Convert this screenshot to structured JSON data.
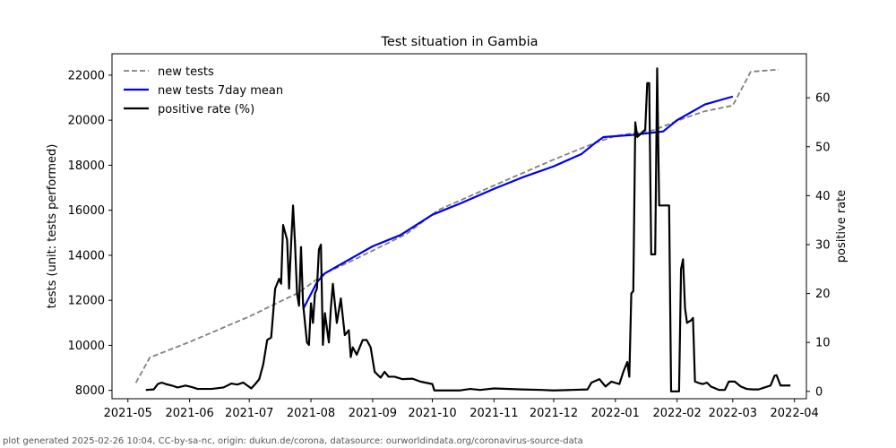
{
  "footer_text": "plot generated 2025-02-26 10:04, CC-by-sa-nc, origin: dukun.de/corona, datasource: ourworldindata.org/coronavirus-source-data",
  "chart_data": {
    "type": "line",
    "title": "Test situation in Gambia",
    "ylabel_left": "tests (unit: tests performed)",
    "ylabel_right": "positive rate",
    "x_ticks": [
      "2021-05",
      "2021-06",
      "2021-07",
      "2021-08",
      "2021-09",
      "2021-10",
      "2021-11",
      "2021-12",
      "2022-01",
      "2022-02",
      "2022-03",
      "2022-04"
    ],
    "x_range": [
      "2021-04-23",
      "2022-04-07"
    ],
    "y_left_ticks": [
      8000,
      10000,
      12000,
      14000,
      16000,
      18000,
      20000,
      22000
    ],
    "y_left_range": [
      7630,
      22950
    ],
    "y_right_ticks": [
      0,
      10,
      20,
      30,
      40,
      50,
      60
    ],
    "y_right_range": [
      -1.5,
      69
    ],
    "legend": {
      "placement": "top-left",
      "entries": [
        "new tests",
        "new tests 7day mean",
        "positive rate (%)"
      ]
    },
    "colors": {
      "new_tests": "#808080",
      "mean": "#0000ee",
      "positive": "#000000"
    },
    "series": [
      {
        "name": "new tests",
        "axis": "left",
        "style": "dashed",
        "points": [
          [
            "2021-05-05",
            8340
          ],
          [
            "2021-05-12",
            9460
          ],
          [
            "2021-06-01",
            10150
          ],
          [
            "2021-07-01",
            11280
          ],
          [
            "2021-07-26",
            12350
          ],
          [
            "2021-08-08",
            13200
          ],
          [
            "2021-08-25",
            13900
          ],
          [
            "2021-09-18",
            14950
          ],
          [
            "2021-10-04",
            16010
          ],
          [
            "2021-11-01",
            17100
          ],
          [
            "2021-12-01",
            18250
          ],
          [
            "2021-12-22",
            19000
          ],
          [
            "2022-01-01",
            19300
          ],
          [
            "2022-01-20",
            19550
          ],
          [
            "2022-02-05",
            20100
          ],
          [
            "2022-02-15",
            20400
          ],
          [
            "2022-03-01",
            20650
          ],
          [
            "2022-03-10",
            22150
          ],
          [
            "2022-03-24",
            22250
          ]
        ]
      },
      {
        "name": "new tests 7day mean",
        "axis": "left",
        "style": "solid",
        "points": [
          [
            "2021-07-28",
            11600
          ],
          [
            "2021-08-04",
            12800
          ],
          [
            "2021-08-08",
            13200
          ],
          [
            "2021-08-20",
            13800
          ],
          [
            "2021-09-01",
            14400
          ],
          [
            "2021-09-15",
            14900
          ],
          [
            "2021-10-01",
            15800
          ],
          [
            "2021-10-15",
            16300
          ],
          [
            "2021-11-01",
            16950
          ],
          [
            "2021-11-15",
            17450
          ],
          [
            "2021-12-01",
            17950
          ],
          [
            "2021-12-15",
            18500
          ],
          [
            "2021-12-22",
            19000
          ],
          [
            "2021-12-26",
            19250
          ],
          [
            "2022-01-10",
            19350
          ],
          [
            "2022-01-25",
            19500
          ],
          [
            "2022-02-01",
            20000
          ],
          [
            "2022-02-15",
            20700
          ],
          [
            "2022-03-01",
            21050
          ]
        ]
      },
      {
        "name": "positive rate (%)",
        "axis": "right",
        "style": "solid",
        "points": [
          [
            "2021-05-10",
            0.3
          ],
          [
            "2021-05-14",
            0.4
          ],
          [
            "2021-05-16",
            1.5
          ],
          [
            "2021-05-18",
            1.8
          ],
          [
            "2021-05-20",
            1.5
          ],
          [
            "2021-05-23",
            1.2
          ],
          [
            "2021-05-26",
            0.8
          ],
          [
            "2021-05-30",
            1.2
          ],
          [
            "2021-06-02",
            0.9
          ],
          [
            "2021-06-05",
            0.5
          ],
          [
            "2021-06-12",
            0.5
          ],
          [
            "2021-06-18",
            0.8
          ],
          [
            "2021-06-22",
            1.6
          ],
          [
            "2021-06-25",
            1.4
          ],
          [
            "2021-06-28",
            1.8
          ],
          [
            "2021-07-02",
            0.6
          ],
          [
            "2021-07-04",
            1.5
          ],
          [
            "2021-07-06",
            2.5
          ],
          [
            "2021-07-08",
            5.5
          ],
          [
            "2021-07-10",
            10.5
          ],
          [
            "2021-07-12",
            11
          ],
          [
            "2021-07-14",
            21
          ],
          [
            "2021-07-16",
            23
          ],
          [
            "2021-07-17",
            22
          ],
          [
            "2021-07-18",
            34
          ],
          [
            "2021-07-20",
            31
          ],
          [
            "2021-07-21",
            21
          ],
          [
            "2021-07-22",
            30
          ],
          [
            "2021-07-23",
            38
          ],
          [
            "2021-07-24",
            30
          ],
          [
            "2021-07-25",
            20
          ],
          [
            "2021-07-26",
            17.5
          ],
          [
            "2021-07-27",
            29.5
          ],
          [
            "2021-07-28",
            18
          ],
          [
            "2021-07-30",
            10
          ],
          [
            "2021-07-31",
            9.5
          ],
          [
            "2021-08-01",
            18
          ],
          [
            "2021-08-02",
            14
          ],
          [
            "2021-08-03",
            20
          ],
          [
            "2021-08-04",
            21
          ],
          [
            "2021-08-05",
            29
          ],
          [
            "2021-08-06",
            30
          ],
          [
            "2021-08-07",
            9.5
          ],
          [
            "2021-08-08",
            16
          ],
          [
            "2021-08-09",
            13
          ],
          [
            "2021-08-10",
            10
          ],
          [
            "2021-08-11",
            17
          ],
          [
            "2021-08-12",
            22
          ],
          [
            "2021-08-13",
            18
          ],
          [
            "2021-08-14",
            14
          ],
          [
            "2021-08-16",
            19
          ],
          [
            "2021-08-18",
            11.5
          ],
          [
            "2021-08-20",
            12.5
          ],
          [
            "2021-08-21",
            7
          ],
          [
            "2021-08-22",
            9
          ],
          [
            "2021-08-24",
            7.5
          ],
          [
            "2021-08-27",
            10.5
          ],
          [
            "2021-08-29",
            10.5
          ],
          [
            "2021-08-31",
            9
          ],
          [
            "2021-09-02",
            4
          ],
          [
            "2021-09-05",
            2.8
          ],
          [
            "2021-09-07",
            4
          ],
          [
            "2021-09-09",
            3
          ],
          [
            "2021-09-12",
            3
          ],
          [
            "2021-09-16",
            2.5
          ],
          [
            "2021-09-21",
            2.6
          ],
          [
            "2021-09-25",
            2
          ],
          [
            "2021-10-01",
            1.5
          ],
          [
            "2021-10-02",
            0.2
          ],
          [
            "2021-10-15",
            0.2
          ],
          [
            "2021-10-20",
            0.5
          ],
          [
            "2021-10-25",
            0.3
          ],
          [
            "2021-11-01",
            0.6
          ],
          [
            "2021-11-15",
            0.4
          ],
          [
            "2021-11-25",
            0.3
          ],
          [
            "2021-12-01",
            0.2
          ],
          [
            "2021-12-10",
            0.3
          ],
          [
            "2021-12-18",
            0.4
          ],
          [
            "2021-12-20",
            1.8
          ],
          [
            "2021-12-24",
            2.5
          ],
          [
            "2021-12-27",
            1
          ],
          [
            "2021-12-30",
            2
          ],
          [
            "2022-01-03",
            1.5
          ],
          [
            "2022-01-05",
            4
          ],
          [
            "2022-01-07",
            6
          ],
          [
            "2022-01-08",
            3
          ],
          [
            "2022-01-09",
            20
          ],
          [
            "2022-01-10",
            20.5
          ],
          [
            "2022-01-11",
            55
          ],
          [
            "2022-01-12",
            52
          ],
          [
            "2022-01-16",
            53.5
          ],
          [
            "2022-01-17",
            63
          ],
          [
            "2022-01-18",
            63
          ],
          [
            "2022-01-19",
            28
          ],
          [
            "2022-01-21",
            28
          ],
          [
            "2022-01-22",
            66
          ],
          [
            "2022-01-23",
            38
          ],
          [
            "2022-01-28",
            38
          ],
          [
            "2022-01-29",
            0
          ],
          [
            "2022-02-02",
            0
          ],
          [
            "2022-02-03",
            25
          ],
          [
            "2022-02-04",
            27
          ],
          [
            "2022-02-05",
            17
          ],
          [
            "2022-02-06",
            14
          ],
          [
            "2022-02-08",
            14.5
          ],
          [
            "2022-02-09",
            15
          ],
          [
            "2022-02-10",
            2
          ],
          [
            "2022-02-12",
            1.7
          ],
          [
            "2022-02-14",
            1.5
          ],
          [
            "2022-02-16",
            1.8
          ],
          [
            "2022-02-18",
            1
          ],
          [
            "2022-02-22",
            0.3
          ],
          [
            "2022-02-25",
            0.3
          ],
          [
            "2022-02-27",
            2
          ],
          [
            "2022-03-02",
            2
          ],
          [
            "2022-03-05",
            1
          ],
          [
            "2022-03-08",
            0.5
          ],
          [
            "2022-03-11",
            0.4
          ],
          [
            "2022-03-14",
            0.4
          ],
          [
            "2022-03-17",
            0.8
          ],
          [
            "2022-03-20",
            1.2
          ],
          [
            "2022-03-22",
            3.2
          ],
          [
            "2022-03-23",
            3.3
          ],
          [
            "2022-03-25",
            1.2
          ],
          [
            "2022-03-30",
            1.2
          ]
        ]
      }
    ]
  }
}
